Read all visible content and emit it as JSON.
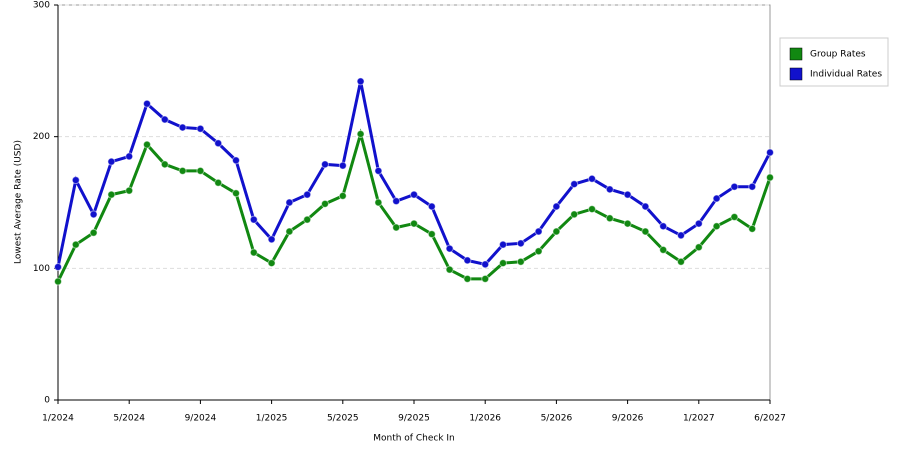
{
  "chart_data": {
    "type": "line",
    "x_label": "Month of Check In",
    "y_label": "Lowest Average Rate (USD)",
    "categories": [
      "1/2024",
      null,
      null,
      null,
      "5/2024",
      null,
      null,
      null,
      "9/2024",
      null,
      null,
      null,
      "1/2025",
      null,
      null,
      null,
      "5/2025",
      null,
      null,
      null,
      "9/2025",
      null,
      null,
      null,
      "1/2026",
      null,
      null,
      null,
      "5/2026",
      null,
      null,
      null,
      "9/2026",
      null,
      null,
      null,
      "1/2027",
      null,
      null,
      null,
      "6/2027"
    ],
    "series": [
      {
        "name": "Group Rates",
        "color": "#118811",
        "values": [
          90,
          118,
          127,
          156,
          159,
          194,
          179,
          174,
          174,
          165,
          157,
          112,
          104,
          128,
          137,
          149,
          155,
          202,
          150,
          131,
          134,
          126,
          99,
          92,
          92,
          104,
          105,
          113,
          128,
          141,
          145,
          138,
          134,
          128,
          114,
          105,
          116,
          132,
          139,
          130,
          169
        ]
      },
      {
        "name": "Individual Rates",
        "color": "#1111cc",
        "values": [
          101,
          167,
          141,
          181,
          185,
          225,
          213,
          207,
          206,
          195,
          182,
          137,
          122,
          150,
          156,
          179,
          178,
          242,
          174,
          151,
          156,
          147,
          115,
          106,
          103,
          118,
          119,
          128,
          147,
          164,
          168,
          160,
          156,
          147,
          132,
          125,
          134,
          153,
          162,
          162,
          188
        ]
      }
    ],
    "ylim": [
      0,
      300
    ],
    "yticks": [
      0,
      100,
      200,
      300
    ],
    "grid": true,
    "legend": "right"
  }
}
